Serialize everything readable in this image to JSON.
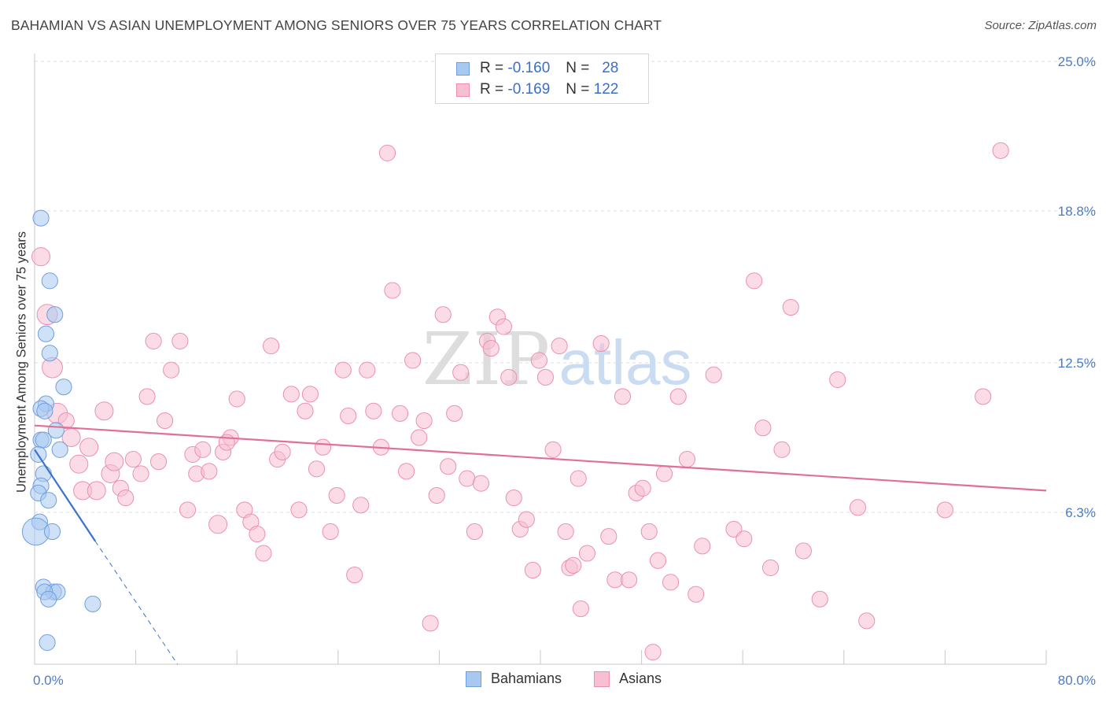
{
  "chart_data": {
    "type": "scatter",
    "title": "BAHAMIAN VS ASIAN UNEMPLOYMENT AMONG SENIORS OVER 75 YEARS CORRELATION CHART",
    "source": "Source: ZipAtlas.com",
    "xlabel": "",
    "ylabel": "Unemployment Among Seniors over 75 years",
    "xlim": [
      0,
      80
    ],
    "ylim": [
      0,
      25
    ],
    "x_tick_labels": [
      "0.0%",
      "80.0%"
    ],
    "y_ticks": [
      {
        "value": 25.0,
        "label": "25.0%"
      },
      {
        "value": 18.8,
        "label": "18.8%"
      },
      {
        "value": 12.5,
        "label": "12.5%"
      },
      {
        "value": 6.3,
        "label": "6.3%"
      }
    ],
    "grid": true,
    "watermark": "ZIPatlas",
    "legend": {
      "rows": [
        {
          "r_label": "R =",
          "r_value": "-0.160",
          "n_label": "N =",
          "n_value": "28",
          "color": "#a8c8f0",
          "stroke": "#6f9ee0"
        },
        {
          "r_label": "R =",
          "r_value": "-0.169",
          "n_label": "N =",
          "n_value": "122",
          "color": "#f8bfd1",
          "stroke": "#ec8fae"
        }
      ]
    },
    "series": [
      {
        "name": "Bahamians",
        "color": "#a8c8f0",
        "stroke": "#6f9ee0",
        "trend": {
          "x0": 0,
          "y0": 8.9,
          "x1": 4.8,
          "y1": 5.1,
          "dash_x1": 11.3,
          "dash_y1": 0.0,
          "color": "#3a72d0"
        },
        "points": [
          [
            0.5,
            18.5,
            12
          ],
          [
            1.2,
            15.9,
            12
          ],
          [
            1.6,
            14.5,
            12
          ],
          [
            0.9,
            13.7,
            12
          ],
          [
            1.2,
            12.9,
            12
          ],
          [
            2.3,
            11.5,
            12
          ],
          [
            0.9,
            10.8,
            12
          ],
          [
            0.5,
            10.6,
            12
          ],
          [
            0.8,
            10.5,
            12
          ],
          [
            1.7,
            9.7,
            12
          ],
          [
            0.5,
            9.3,
            12
          ],
          [
            0.7,
            9.3,
            12
          ],
          [
            2.0,
            8.9,
            12
          ],
          [
            0.3,
            8.7,
            12
          ],
          [
            0.7,
            7.9,
            12
          ],
          [
            0.5,
            7.4,
            12
          ],
          [
            0.3,
            7.1,
            12
          ],
          [
            1.1,
            6.8,
            12
          ],
          [
            0.4,
            5.9,
            12
          ],
          [
            0.1,
            5.5,
            22
          ],
          [
            1.4,
            5.5,
            12
          ],
          [
            0.7,
            3.2,
            12
          ],
          [
            1.5,
            3.0,
            12
          ],
          [
            1.8,
            3.0,
            12
          ],
          [
            0.8,
            3.0,
            12
          ],
          [
            1.1,
            2.7,
            12
          ],
          [
            4.6,
            2.5,
            12
          ],
          [
            1.0,
            0.9,
            12
          ]
        ]
      },
      {
        "name": "Asians",
        "color": "#f8bfd1",
        "stroke": "#ec8fae",
        "trend": {
          "x0": 0,
          "y0": 9.9,
          "x1": 80,
          "y1": 7.2,
          "color": "#e07095"
        },
        "points": [
          [
            0.5,
            16.9,
            14
          ],
          [
            1.0,
            14.5,
            16
          ],
          [
            1.4,
            12.3,
            16
          ],
          [
            1.8,
            10.4,
            16
          ],
          [
            2.5,
            10.1,
            12
          ],
          [
            2.9,
            9.4,
            14
          ],
          [
            3.5,
            8.3,
            14
          ],
          [
            4.3,
            9.0,
            14
          ],
          [
            3.8,
            7.2,
            14
          ],
          [
            4.9,
            7.2,
            14
          ],
          [
            5.5,
            10.5,
            14
          ],
          [
            6.0,
            7.9,
            14
          ],
          [
            6.3,
            8.4,
            14
          ],
          [
            6.8,
            7.3,
            12
          ],
          [
            7.2,
            6.9,
            12
          ],
          [
            7.8,
            8.5,
            12
          ],
          [
            8.4,
            7.9,
            12
          ],
          [
            8.9,
            11.1,
            12
          ],
          [
            9.4,
            13.4,
            12
          ],
          [
            9.8,
            8.4,
            12
          ],
          [
            10.3,
            10.1,
            12
          ],
          [
            10.8,
            12.2,
            12
          ],
          [
            11.5,
            13.4,
            12
          ],
          [
            12.1,
            6.4,
            12
          ],
          [
            12.5,
            8.7,
            12
          ],
          [
            12.8,
            7.9,
            12
          ],
          [
            13.3,
            8.9,
            12
          ],
          [
            13.8,
            8.0,
            12
          ],
          [
            14.5,
            5.8,
            14
          ],
          [
            14.9,
            8.8,
            12
          ],
          [
            15.5,
            9.4,
            12
          ],
          [
            15.2,
            9.2,
            12
          ],
          [
            16.0,
            11.0,
            12
          ],
          [
            16.6,
            6.4,
            12
          ],
          [
            17.1,
            5.9,
            12
          ],
          [
            17.6,
            5.4,
            12
          ],
          [
            18.1,
            4.6,
            12
          ],
          [
            18.7,
            13.2,
            12
          ],
          [
            19.2,
            8.5,
            12
          ],
          [
            19.6,
            8.8,
            12
          ],
          [
            20.3,
            11.2,
            12
          ],
          [
            20.9,
            6.4,
            12
          ],
          [
            21.4,
            10.5,
            12
          ],
          [
            21.8,
            11.2,
            12
          ],
          [
            22.3,
            8.1,
            12
          ],
          [
            22.8,
            9.0,
            12
          ],
          [
            23.4,
            5.5,
            12
          ],
          [
            23.9,
            7.0,
            12
          ],
          [
            24.4,
            12.2,
            12
          ],
          [
            24.8,
            10.3,
            12
          ],
          [
            25.3,
            3.7,
            12
          ],
          [
            25.8,
            6.6,
            12
          ],
          [
            26.3,
            12.2,
            12
          ],
          [
            26.8,
            10.5,
            12
          ],
          [
            27.4,
            9.0,
            12
          ],
          [
            27.9,
            21.2,
            12
          ],
          [
            28.3,
            15.5,
            12
          ],
          [
            28.9,
            10.4,
            12
          ],
          [
            29.4,
            8.0,
            12
          ],
          [
            29.9,
            12.6,
            12
          ],
          [
            30.4,
            9.4,
            12
          ],
          [
            30.8,
            10.1,
            12
          ],
          [
            31.3,
            1.7,
            12
          ],
          [
            31.8,
            7.0,
            12
          ],
          [
            32.3,
            14.5,
            12
          ],
          [
            32.7,
            8.2,
            12
          ],
          [
            33.2,
            10.4,
            12
          ],
          [
            33.7,
            12.1,
            12
          ],
          [
            34.2,
            7.7,
            12
          ],
          [
            34.8,
            5.5,
            12
          ],
          [
            35.3,
            7.5,
            12
          ],
          [
            35.8,
            13.4,
            12
          ],
          [
            36.1,
            13.1,
            12
          ],
          [
            36.6,
            14.4,
            12
          ],
          [
            37.1,
            14.0,
            12
          ],
          [
            37.5,
            11.9,
            12
          ],
          [
            37.9,
            6.9,
            12
          ],
          [
            38.4,
            5.6,
            12
          ],
          [
            38.9,
            6.0,
            12
          ],
          [
            39.4,
            3.9,
            12
          ],
          [
            39.9,
            12.6,
            12
          ],
          [
            40.4,
            11.9,
            12
          ],
          [
            41.0,
            8.9,
            12
          ],
          [
            41.5,
            13.2,
            12
          ],
          [
            42.0,
            5.5,
            12
          ],
          [
            42.3,
            4.0,
            12
          ],
          [
            42.6,
            4.1,
            12
          ],
          [
            43.2,
            2.3,
            12
          ],
          [
            43.0,
            7.7,
            12
          ],
          [
            43.7,
            4.6,
            12
          ],
          [
            44.8,
            13.3,
            12
          ],
          [
            45.4,
            5.3,
            12
          ],
          [
            45.9,
            3.5,
            12
          ],
          [
            46.5,
            11.1,
            12
          ],
          [
            47.0,
            3.5,
            12
          ],
          [
            47.6,
            7.1,
            12
          ],
          [
            48.1,
            7.3,
            12
          ],
          [
            48.6,
            5.5,
            12
          ],
          [
            48.9,
            0.5,
            12
          ],
          [
            49.3,
            4.3,
            12
          ],
          [
            49.8,
            7.9,
            12
          ],
          [
            50.3,
            3.4,
            12
          ],
          [
            50.9,
            11.1,
            12
          ],
          [
            51.6,
            8.5,
            12
          ],
          [
            52.3,
            2.9,
            12
          ],
          [
            52.8,
            4.9,
            12
          ],
          [
            53.7,
            12.0,
            12
          ],
          [
            55.3,
            5.6,
            12
          ],
          [
            56.1,
            5.2,
            12
          ],
          [
            56.9,
            15.9,
            12
          ],
          [
            57.6,
            9.8,
            12
          ],
          [
            58.2,
            4.0,
            12
          ],
          [
            59.1,
            8.9,
            12
          ],
          [
            59.8,
            14.8,
            12
          ],
          [
            60.8,
            4.7,
            12
          ],
          [
            62.1,
            2.7,
            12
          ],
          [
            63.5,
            11.8,
            12
          ],
          [
            65.1,
            6.5,
            12
          ],
          [
            65.8,
            1.8,
            12
          ],
          [
            72.0,
            6.4,
            12
          ],
          [
            75.0,
            11.1,
            12
          ],
          [
            76.4,
            21.3,
            12
          ]
        ]
      }
    ]
  }
}
